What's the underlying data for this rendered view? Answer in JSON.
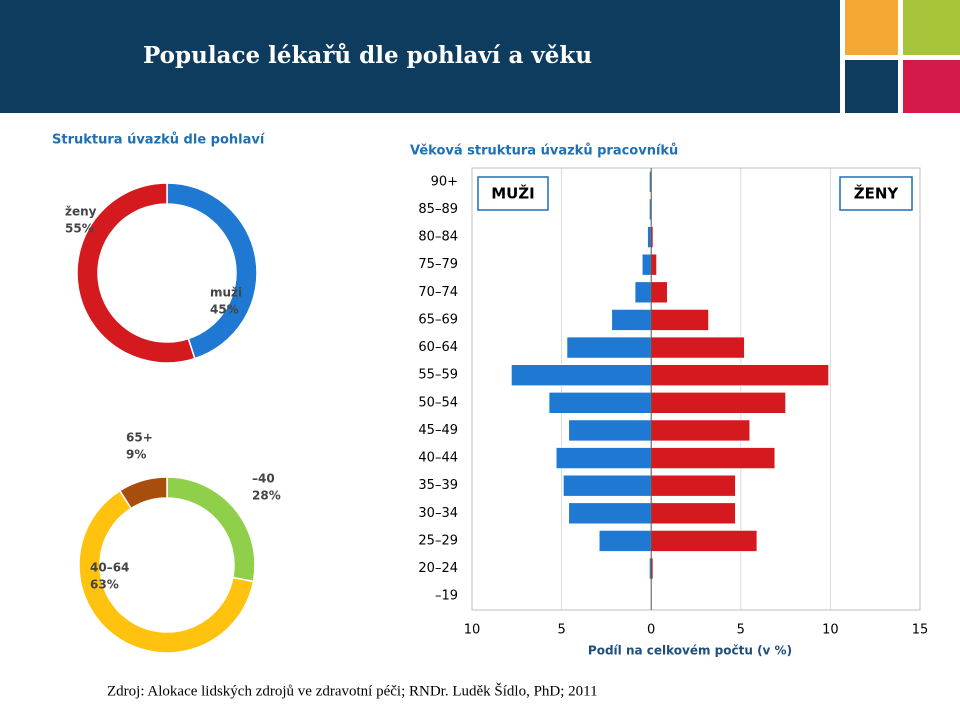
{
  "header": {
    "title": "Populace lékařů dle pohlaví a věku"
  },
  "chart_data": [
    {
      "type": "donut",
      "title": "Struktura úvazků dle pohlaví",
      "categories": [
        "muži",
        "ženy"
      ],
      "values": [
        45,
        55
      ],
      "value_labels": [
        "45%",
        "55%"
      ],
      "colors": [
        "#1f78d1",
        "#d41a1f"
      ]
    },
    {
      "type": "donut",
      "categories": [
        "–40",
        "40–64",
        "65+"
      ],
      "values": [
        28,
        63,
        9
      ],
      "value_labels": [
        "28%",
        "63%",
        "9%"
      ],
      "colors": [
        "#8fcf4a",
        "#ffc20e",
        "#a84e0c"
      ]
    },
    {
      "type": "hbar",
      "title": "Věková struktura úvazků pracovníků",
      "categories": [
        "90+",
        "85–89",
        "80–84",
        "75–79",
        "70–74",
        "65–69",
        "60–64",
        "55–59",
        "50–54",
        "45–49",
        "40–44",
        "35–39",
        "30–34",
        "25–29",
        "20–24",
        "–19"
      ],
      "series": [
        {
          "name": "MUŽI",
          "color": "#1f78d1",
          "values": [
            -0.1,
            -0.1,
            -0.2,
            -0.5,
            -0.9,
            -2.2,
            -4.7,
            -7.8,
            -5.7,
            -4.6,
            -5.3,
            -4.9,
            -4.6,
            -2.9,
            -0.1,
            0
          ]
        },
        {
          "name": "ŽENY",
          "color": "#d41a1f",
          "values": [
            0,
            0,
            0.1,
            0.3,
            0.9,
            3.2,
            5.2,
            9.9,
            7.5,
            5.5,
            6.9,
            4.7,
            4.7,
            5.9,
            0.1,
            0
          ]
        }
      ],
      "xlim": [
        -10,
        15
      ],
      "xticks": [
        {
          "value": -10,
          "label": "10"
        },
        {
          "value": -5,
          "label": "5"
        },
        0,
        5,
        10,
        15
      ],
      "x_label": "Podíl na celkovém počtu (v %)",
      "grid": true
    }
  ],
  "footer": {
    "source": "Zdroj: Alokace lidských zdrojů ve zdravotní péči; RNDr. Luděk Šídlo, PhD; 2011"
  }
}
